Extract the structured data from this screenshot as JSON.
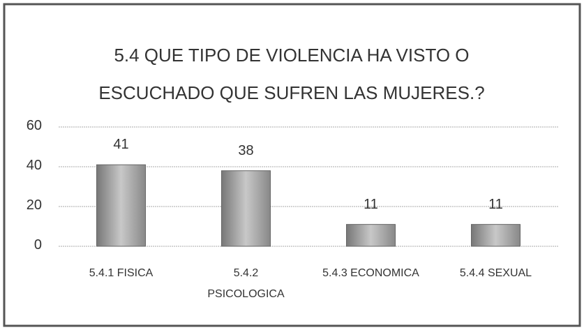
{
  "chart_data": {
    "type": "bar",
    "title": "5.4 QUE TIPO DE VIOLENCIA HA VISTO O ESCUCHADO QUE SUFREN LAS MUJERES.?",
    "categories": [
      "5.4.1 FISICA",
      "5.4.2 PSICOLOGICA",
      "5.4.3 ECONOMICA",
      "5.4.4 SEXUAL"
    ],
    "values": [
      41,
      38,
      11,
      11
    ],
    "color": "#a9a9a9",
    "ylim": [
      0,
      60
    ],
    "yticks": [
      0,
      20,
      40,
      60
    ],
    "grid": true
  }
}
